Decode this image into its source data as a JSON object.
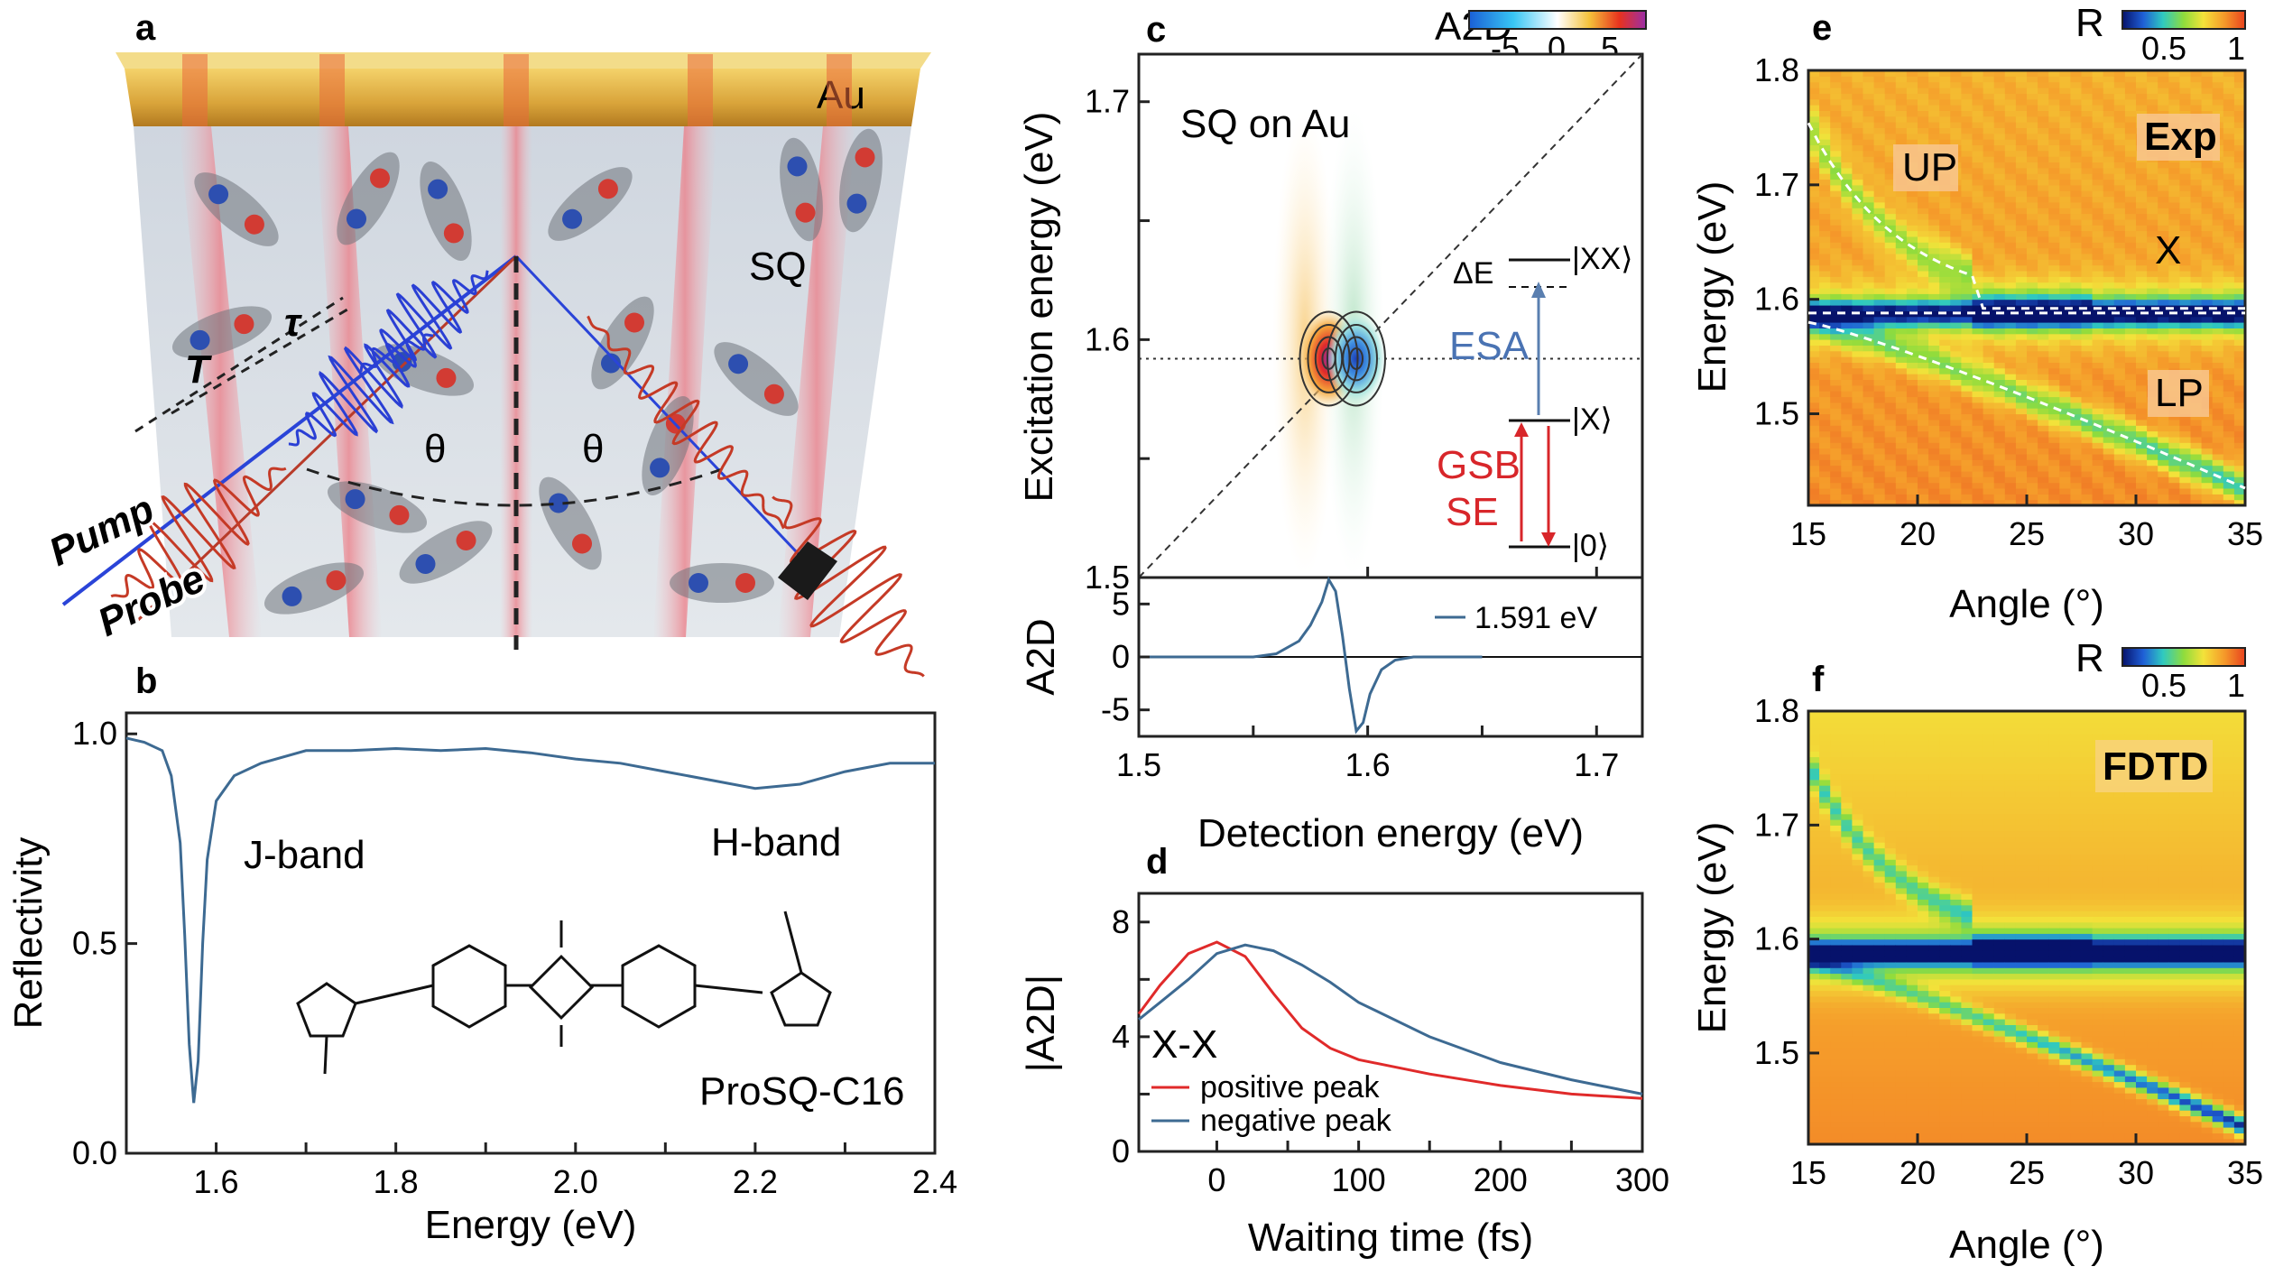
{
  "panels": {
    "a": {
      "label": "a",
      "texts": {
        "au": "Au",
        "sq": "SQ",
        "tau": "τ",
        "T": "T",
        "theta1": "θ",
        "theta2": "θ",
        "pump": "Pump",
        "probe": "Probe"
      }
    },
    "b": {
      "label": "b"
    },
    "c": {
      "label": "c"
    },
    "d": {
      "label": "d"
    },
    "e": {
      "label": "e"
    },
    "f": {
      "label": "f"
    }
  },
  "colorbar_a2d": {
    "label": "A2D",
    "ticks": [
      "-5",
      "0",
      "5"
    ],
    "colors": [
      "#1a5fd6",
      "#38c6f4",
      "#ffffff",
      "#f5c23a",
      "#e8321e",
      "#9b2ea8"
    ]
  },
  "colorbar_r": {
    "label": "R",
    "ticks": [
      "0.5",
      "1"
    ],
    "colors": [
      "#06126b",
      "#1f5fd6",
      "#2fc9c0",
      "#8fdc3c",
      "#f3e23a",
      "#f59a2a",
      "#e8421e"
    ]
  },
  "chart_data": [
    {
      "id": "b",
      "type": "line",
      "xlabel": "Energy (eV)",
      "ylabel": "Reflectivity",
      "xlim": [
        1.5,
        2.4
      ],
      "ylim": [
        0.0,
        1.05
      ],
      "xticks": [
        "1.6",
        "1.8",
        "2.0",
        "2.2",
        "2.4"
      ],
      "yticks": [
        "0.0",
        "0.5",
        "1.0"
      ],
      "series": [
        {
          "color": "#3d6a92",
          "x": [
            1.5,
            1.52,
            1.54,
            1.55,
            1.56,
            1.565,
            1.57,
            1.575,
            1.58,
            1.585,
            1.59,
            1.6,
            1.62,
            1.65,
            1.7,
            1.75,
            1.8,
            1.85,
            1.9,
            1.95,
            2.0,
            2.05,
            2.1,
            2.15,
            2.2,
            2.25,
            2.3,
            2.35,
            2.4
          ],
          "y": [
            0.99,
            0.98,
            0.96,
            0.9,
            0.74,
            0.52,
            0.26,
            0.12,
            0.22,
            0.5,
            0.7,
            0.84,
            0.9,
            0.93,
            0.96,
            0.96,
            0.965,
            0.96,
            0.965,
            0.955,
            0.94,
            0.93,
            0.91,
            0.89,
            0.87,
            0.88,
            0.91,
            0.93,
            0.93
          ]
        }
      ],
      "annotations": [
        "J-band",
        "H-band",
        "ProSQ-C16"
      ]
    },
    {
      "id": "c",
      "type": "heatmap",
      "xlabel": "Detection energy (eV)",
      "ylabel": "Excitation energy (eV)",
      "xlim": [
        1.5,
        1.72
      ],
      "ylim": [
        1.5,
        1.72
      ],
      "xticks": [
        "1.5",
        "1.6",
        "1.7"
      ],
      "yticks": [
        "1.5",
        "1.6",
        "1.7"
      ],
      "peaks": [
        {
          "x": 1.583,
          "y": 1.592,
          "sign": "positive"
        },
        {
          "x": 1.595,
          "y": 1.592,
          "sign": "negative"
        }
      ],
      "annotations": [
        "SQ on Au",
        "|XX⟩",
        "ΔE",
        "ESA",
        "|X⟩",
        "GSB",
        "SE",
        "|0⟩"
      ]
    },
    {
      "id": "c-lower",
      "type": "line",
      "ylabel": "A2D",
      "xlim": [
        1.5,
        1.72
      ],
      "ylim": [
        -7.5,
        7.5
      ],
      "yticks": [
        "-5",
        "0",
        "5"
      ],
      "series": [
        {
          "name": "1.591 eV",
          "color": "#3d6a92",
          "x": [
            1.5,
            1.55,
            1.56,
            1.57,
            1.575,
            1.58,
            1.583,
            1.586,
            1.589,
            1.592,
            1.595,
            1.598,
            1.601,
            1.606,
            1.612,
            1.62,
            1.65
          ],
          "y": [
            0,
            0,
            0.3,
            1.5,
            3.0,
            5.2,
            7.3,
            6.2,
            2.0,
            -3.0,
            -7.0,
            -6.2,
            -3.5,
            -1.2,
            -0.3,
            0,
            0
          ]
        }
      ]
    },
    {
      "id": "d",
      "type": "line",
      "xlabel": "Waiting time (fs)",
      "ylabel": "|A2D|",
      "xlim": [
        -55,
        300
      ],
      "ylim": [
        0,
        9
      ],
      "xticks": [
        "0",
        "100",
        "200",
        "300"
      ],
      "yticks": [
        "0",
        "4",
        "8"
      ],
      "legend_title": "X-X",
      "series": [
        {
          "name": "positive peak",
          "color": "#e02a2a",
          "x": [
            -55,
            -40,
            -20,
            0,
            20,
            40,
            60,
            80,
            100,
            150,
            200,
            250,
            300
          ],
          "y": [
            4.8,
            5.8,
            6.9,
            7.3,
            6.8,
            5.5,
            4.3,
            3.6,
            3.2,
            2.7,
            2.3,
            2.0,
            1.85
          ]
        },
        {
          "name": "negative peak",
          "color": "#3d6a92",
          "x": [
            -55,
            -40,
            -20,
            0,
            20,
            40,
            60,
            80,
            100,
            150,
            200,
            250,
            300
          ],
          "y": [
            4.6,
            5.2,
            6.0,
            6.9,
            7.2,
            7.0,
            6.5,
            5.9,
            5.2,
            4.0,
            3.1,
            2.5,
            2.0
          ]
        }
      ]
    },
    {
      "id": "e",
      "type": "heatmap",
      "xlabel": "Angle (°)",
      "ylabel": "Energy (eV)",
      "xlim": [
        15,
        35
      ],
      "ylim": [
        1.42,
        1.8
      ],
      "xticks": [
        "15",
        "20",
        "25",
        "30",
        "35"
      ],
      "yticks": [
        "1.5",
        "1.6",
        "1.7",
        "1.8"
      ],
      "annotations": [
        "UP",
        "Exp",
        "X",
        "LP"
      ]
    },
    {
      "id": "f",
      "type": "heatmap",
      "xlabel": "Angle (°)",
      "ylabel": "Energy (eV)",
      "xlim": [
        15,
        35
      ],
      "ylim": [
        1.42,
        1.8
      ],
      "xticks": [
        "15",
        "20",
        "25",
        "30",
        "35"
      ],
      "yticks": [
        "1.5",
        "1.6",
        "1.7",
        "1.8"
      ],
      "annotations": [
        "FDTD"
      ]
    }
  ]
}
